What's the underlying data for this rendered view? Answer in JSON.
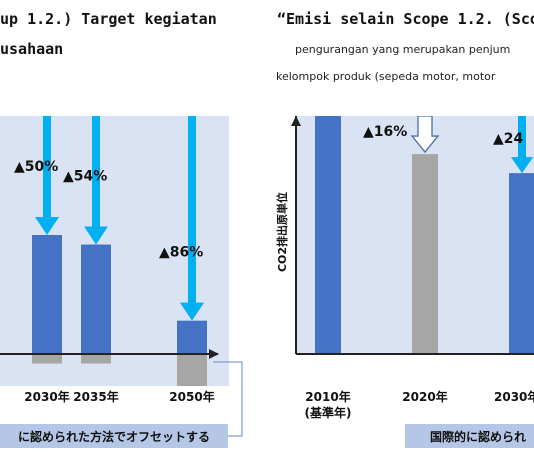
{
  "left_panel": {
    "title_line1": "up 1.2.) Target kegiatan",
    "title_line2": "usahaan",
    "offset_note": "に認められた方法でオフセットする"
  },
  "right_panel": {
    "title": "“Emisi selain Scope 1.2. (Sco",
    "subtitle_line1": "pengurangan yang merupakan penjum",
    "subtitle_line2": "kelompok produk (sepeda motor, motor",
    "ylabel": "CO2排出原単位",
    "offset_note": "国際的に認められ"
  },
  "colors": {
    "bar_blue": "#4472c4",
    "bar_gray": "#a6a6a6",
    "arrow_cyan": "#00b0f0",
    "plot_bg": "#dae3f3",
    "note_bg": "#b4c7e7",
    "connector": "#7f9fcf"
  },
  "chart_data": [
    {
      "type": "bar",
      "categories": [
        "2030年",
        "2035年",
        "2050年"
      ],
      "series": [
        {
          "values": [
            50,
            46,
            14
          ]
        }
      ],
      "offsets": [
        -4,
        -4,
        -14
      ],
      "reductions": [
        "▲50%",
        "▲54%",
        "▲86%"
      ],
      "ylim": [
        -20,
        100
      ]
    },
    {
      "type": "bar",
      "categories": [
        "2010年",
        "2020年",
        "2030年"
      ],
      "category_sublabels": [
        "(基準年)",
        "",
        ""
      ],
      "series": [
        {
          "values": [
            100,
            84,
            76
          ]
        }
      ],
      "bar_colors": [
        "blue",
        "gray",
        "blue"
      ],
      "offsets": [
        0,
        0,
        -4
      ],
      "reductions": [
        "",
        "▲16%",
        "▲24"
      ],
      "ylabel": "CO2排出原単位",
      "ylim": [
        -20,
        100
      ]
    }
  ]
}
